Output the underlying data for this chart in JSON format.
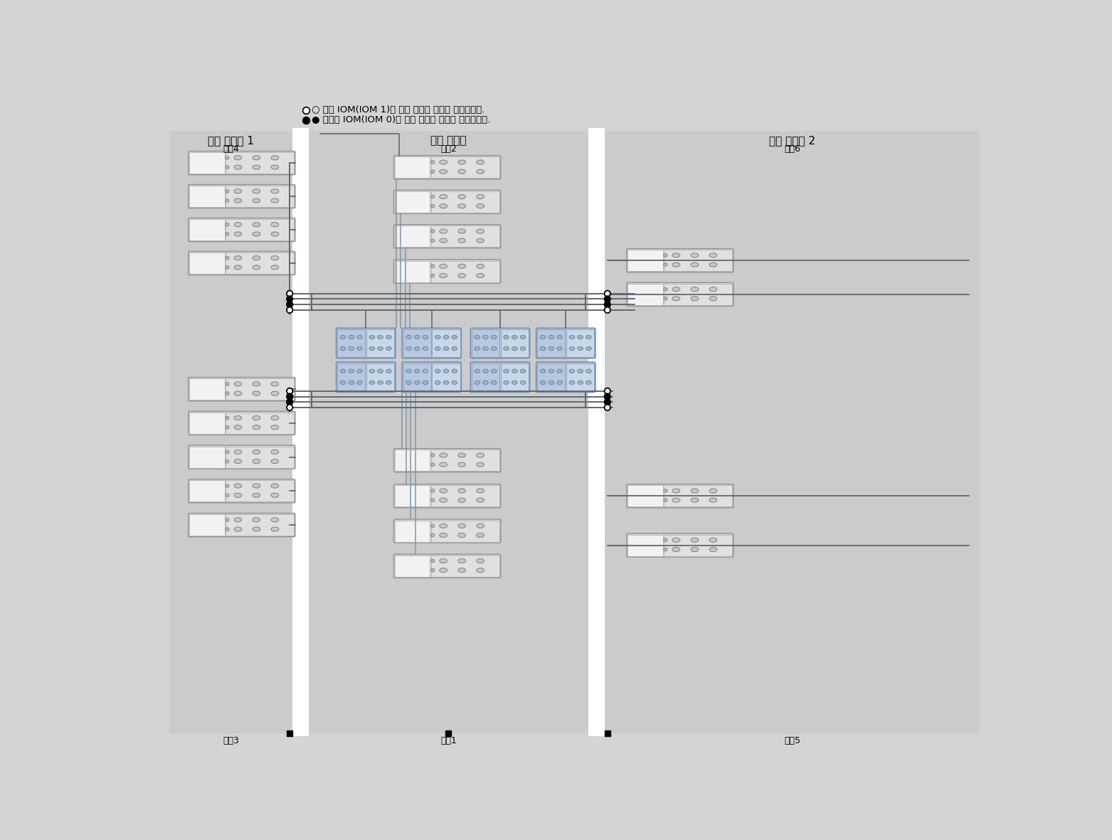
{
  "legend_open": "○ 위쪽 IOM(IOM 1)에 대한 케이블 연결을 나타냅니다.",
  "legend_filled": "● 아래쪽 IOM(IOM 0)에 대한 케이블 연결을 나타냅니다.",
  "cabinet_left_title": "확장 쳨비닛 1",
  "cabinet_left_chain_top": "체인4",
  "cabinet_left_chain_bottom": "체인3",
  "cabinet_center_title": "기본 쳨비닛",
  "cabinet_center_chain_top": "체인2",
  "cabinet_center_chain_bottom": "체인1",
  "cabinet_right_title": "확장 쳨비닛 2",
  "cabinet_right_chain_top": "체인6",
  "cabinet_right_chain_bottom": "체인5",
  "bg_color": "#d4d4d4",
  "cabinet_bg": "#cbcbcb",
  "shelf_bg": "#e8e8e8",
  "line_dark": "#606870",
  "line_mid": "#8098a8",
  "junc_open": "white",
  "junc_filled": "black"
}
